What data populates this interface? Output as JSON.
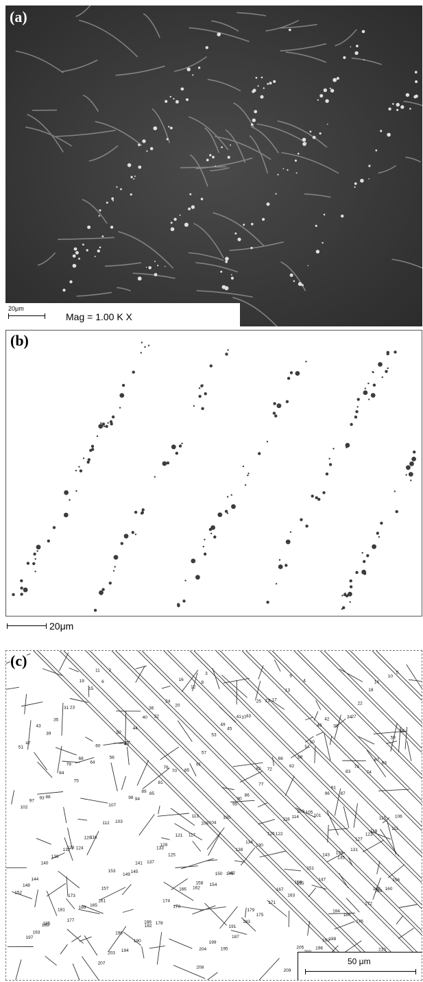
{
  "panels": {
    "a": {
      "label": "(a)",
      "scale_label": "20μm",
      "magnification": "Mag =  1.00 K X"
    },
    "b": {
      "label": "(b)",
      "scale_label": "20μm"
    },
    "c": {
      "label": "(c)",
      "scale_label": "50 μm"
    }
  },
  "cell_labels": [
    "1",
    "2",
    "3",
    "4",
    "5",
    "6",
    "8",
    "9",
    "10",
    "11",
    "12",
    "13",
    "14",
    "15",
    "16",
    "17",
    "18",
    "19",
    "20",
    "21",
    "22",
    "23",
    "24",
    "25",
    "27",
    "31",
    "32",
    "33",
    "34",
    "35",
    "36",
    "37",
    "38",
    "39",
    "40",
    "41",
    "42",
    "43",
    "44",
    "45",
    "46",
    "47",
    "48",
    "49",
    "50",
    "51",
    "52",
    "53",
    "54",
    "55",
    "56",
    "57",
    "58",
    "59",
    "60",
    "61",
    "62",
    "63",
    "64",
    "65",
    "66",
    "67",
    "68",
    "70",
    "72",
    "74",
    "75",
    "76",
    "77",
    "78",
    "79",
    "81",
    "82",
    "83",
    "84",
    "85",
    "86",
    "87",
    "88",
    "89",
    "90",
    "91",
    "93",
    "94",
    "95",
    "96",
    "97",
    "98",
    "100",
    "101",
    "102",
    "103",
    "104",
    "105",
    "106",
    "107",
    "108",
    "109",
    "111",
    "112",
    "113",
    "114",
    "115",
    "116",
    "117",
    "118",
    "119",
    "120",
    "121",
    "122",
    "123",
    "124",
    "125",
    "126",
    "127",
    "128",
    "129",
    "130",
    "131",
    "132",
    "133",
    "134",
    "135",
    "136",
    "137",
    "138",
    "139",
    "140",
    "141",
    "142",
    "143",
    "144",
    "145",
    "146",
    "147",
    "148",
    "149",
    "150",
    "151",
    "152",
    "153",
    "154",
    "155",
    "156",
    "157",
    "158",
    "159",
    "160",
    "161",
    "162",
    "163",
    "164",
    "165",
    "166",
    "167",
    "168",
    "169",
    "170",
    "171",
    "172",
    "173",
    "174",
    "175",
    "176",
    "177",
    "178",
    "179",
    "180",
    "181",
    "182",
    "183",
    "184",
    "185",
    "186",
    "187",
    "188",
    "189",
    "190",
    "191",
    "192",
    "193",
    "194",
    "195",
    "196",
    "197",
    "198",
    "199",
    "200",
    "201",
    "203",
    "204",
    "205",
    "206",
    "207",
    "208",
    "209",
    "210"
  ]
}
